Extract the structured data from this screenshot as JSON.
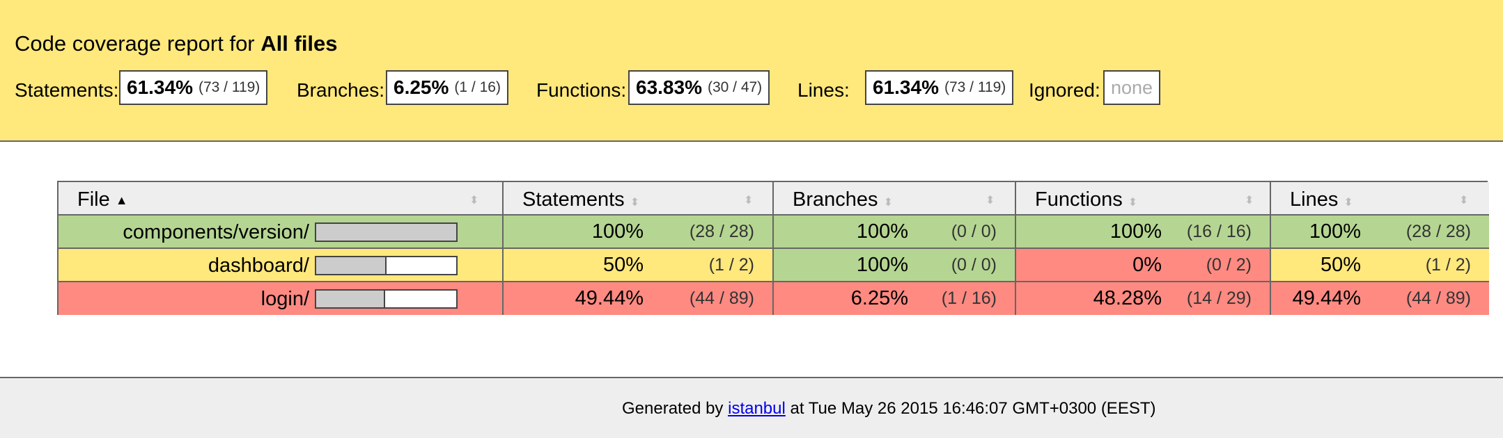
{
  "header": {
    "title_prefix": "Code coverage report for",
    "title_strong": "All files",
    "metrics": [
      {
        "label": "Statements:",
        "pct": "61.34%",
        "frac": "(73 / 119)"
      },
      {
        "label": "Branches:",
        "pct": "6.25%",
        "frac": "(1 / 16)"
      },
      {
        "label": "Functions:",
        "pct": "63.83%",
        "frac": "(30 / 47)"
      },
      {
        "label": "Lines:",
        "pct": "61.34%",
        "frac": "(73 / 119)"
      }
    ],
    "ignored": {
      "label": "Ignored:",
      "value": "none"
    }
  },
  "table": {
    "columns": [
      "File",
      "Statements",
      "Branches",
      "Functions",
      "Lines"
    ],
    "sort_indicator": "▲",
    "sort_icon": "⬍",
    "rows": [
      {
        "file": "components/version/",
        "level": "high",
        "coverage": 1.0,
        "statements": {
          "pct": "100%",
          "frac": "(28 / 28)",
          "level": "high"
        },
        "branches": {
          "pct": "100%",
          "frac": "(0 / 0)",
          "level": "high"
        },
        "functions": {
          "pct": "100%",
          "frac": "(16 / 16)",
          "level": "high"
        },
        "lines": {
          "pct": "100%",
          "frac": "(28 / 28)",
          "level": "high"
        }
      },
      {
        "file": "dashboard/",
        "level": "medium",
        "coverage": 0.5,
        "statements": {
          "pct": "50%",
          "frac": "(1 / 2)",
          "level": "medium"
        },
        "branches": {
          "pct": "100%",
          "frac": "(0 / 0)",
          "level": "high"
        },
        "functions": {
          "pct": "0%",
          "frac": "(0 / 2)",
          "level": "low"
        },
        "lines": {
          "pct": "50%",
          "frac": "(1 / 2)",
          "level": "medium"
        }
      },
      {
        "file": "login/",
        "level": "low",
        "coverage": 0.4944,
        "statements": {
          "pct": "49.44%",
          "frac": "(44 / 89)",
          "level": "low"
        },
        "branches": {
          "pct": "6.25%",
          "frac": "(1 / 16)",
          "level": "low"
        },
        "functions": {
          "pct": "48.28%",
          "frac": "(14 / 29)",
          "level": "low"
        },
        "lines": {
          "pct": "49.44%",
          "frac": "(44 / 89)",
          "level": "low"
        }
      }
    ]
  },
  "footer": {
    "prefix": "Generated by",
    "link": "istanbul",
    "suffix": "at Tue May 26 2015 16:46:07 GMT+0300 (EEST)"
  },
  "colors": {
    "high": "#b5d592",
    "medium": "#ffe87c",
    "low": "#fe8a82",
    "header_bg": "#ffe87c"
  }
}
